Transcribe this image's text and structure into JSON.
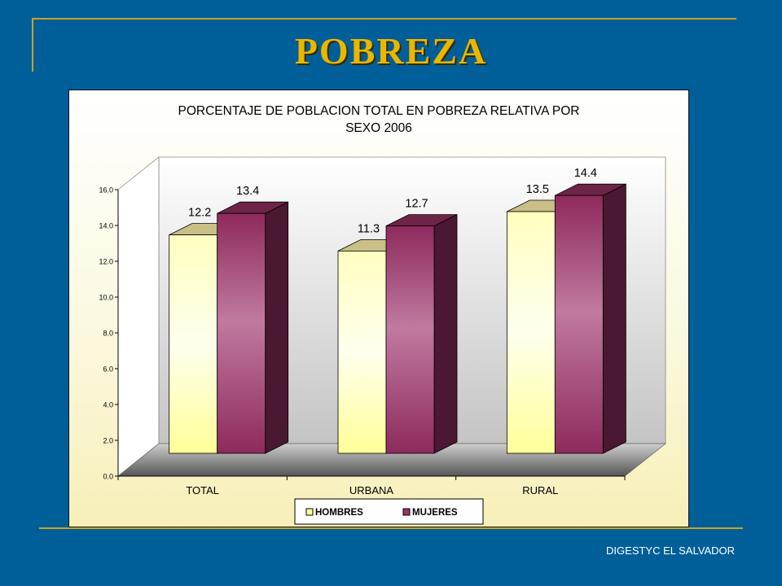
{
  "slide": {
    "title": "POBREZA",
    "footer": "DIGESTYC EL SALVADOR"
  },
  "colors": {
    "background": "#005f99",
    "accent_line": "#c9a227",
    "title": "#e8b800",
    "hombres": "#ffff99",
    "mujeres": "#993366"
  },
  "chart_data": {
    "type": "bar",
    "title_lines": [
      "PORCENTAJE DE POBLACION TOTAL EN POBREZA RELATIVA POR",
      "SEXO 2006"
    ],
    "categories": [
      "TOTAL",
      "URBANA",
      "RURAL"
    ],
    "series": [
      {
        "name": "HOMBRES",
        "values": [
          12.2,
          11.3,
          13.5
        ],
        "labels": [
          "12.2",
          "11.3",
          "13.5"
        ]
      },
      {
        "name": "MUJERES",
        "values": [
          13.4,
          12.7,
          14.4
        ],
        "labels": [
          "13.4",
          "12.7",
          "14.4"
        ]
      }
    ],
    "ylim": [
      0,
      16
    ],
    "yticks": [
      "0.0",
      "2.0",
      "4.0",
      "6.0",
      "8.0",
      "10.0",
      "12.0",
      "14.0",
      "16.0"
    ],
    "grid": false,
    "three_d": true,
    "legend_position": "bottom"
  }
}
